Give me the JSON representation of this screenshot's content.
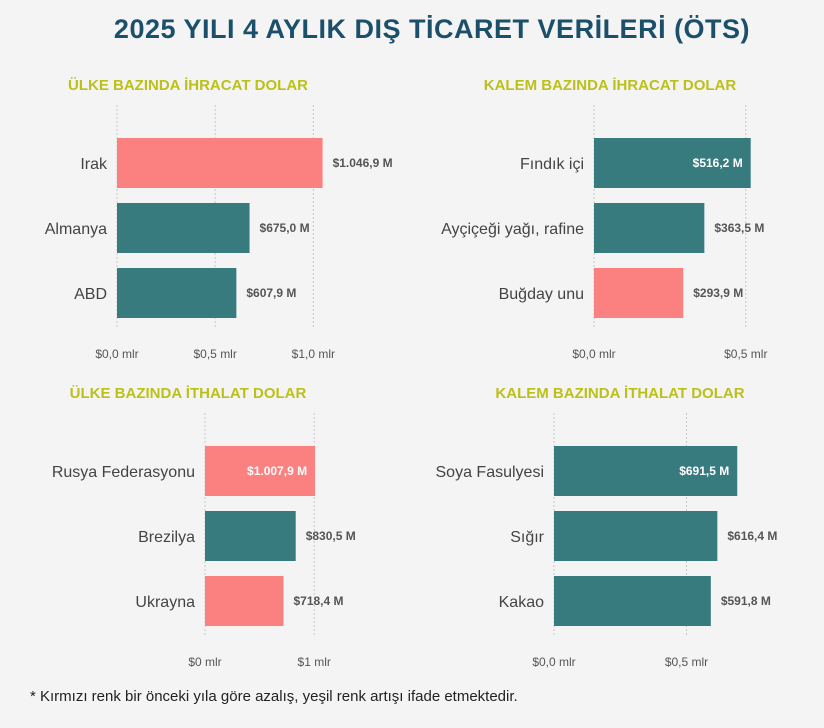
{
  "title": "2025 YILI 4 AYLIK DIŞ TİCARET VERİLERİ (ÖTS)",
  "footnote": "* Kırmızı renk bir önceki yıla göre azalış, yeşil renk artışı ifade etmektedir.",
  "colors": {
    "increase": "#387b7f",
    "decrease": "#fb8080",
    "title": "#1b4f6a",
    "chart_title": "#bcc01a"
  },
  "chart_data": [
    {
      "type": "bar",
      "orientation": "horizontal",
      "title": "ÜLKE BAZINDA İHRACAT DOLAR",
      "categories": [
        "Irak",
        "Almanya",
        "ABD"
      ],
      "values": [
        1046.9,
        675.0,
        607.9
      ],
      "value_labels": [
        "$1.046,9 M",
        "$675,0 M",
        "$607,9 M"
      ],
      "label_inside": [
        false,
        false,
        false
      ],
      "trend": [
        "decrease",
        "increase",
        "increase"
      ],
      "unit": "M USD",
      "xlim": [
        0,
        1100
      ],
      "ticks": [
        0,
        500,
        1000
      ],
      "tick_labels": [
        "$0,0 mlr",
        "$0,5 mlr",
        "$1,0 mlr"
      ]
    },
    {
      "type": "bar",
      "orientation": "horizontal",
      "title": "KALEM BAZINDA İHRACAT DOLAR",
      "categories": [
        "Fındık içi",
        "Ayçiçeği yağı, rafine",
        "Buğday unu"
      ],
      "values": [
        516.2,
        363.5,
        293.9
      ],
      "value_labels": [
        "$516,2 M",
        "$363,5 M",
        "$293,9 M"
      ],
      "label_inside": [
        true,
        false,
        false
      ],
      "trend": [
        "increase",
        "increase",
        "decrease"
      ],
      "unit": "M USD",
      "xlim": [
        0,
        560
      ],
      "ticks": [
        0,
        500
      ],
      "tick_labels": [
        "$0,0 mlr",
        "$0,5 mlr"
      ]
    },
    {
      "type": "bar",
      "orientation": "horizontal",
      "title": "ÜLKE BAZINDA İTHALAT DOLAR",
      "categories": [
        "Rusya Federasyonu",
        "Brezilya",
        "Ukrayna"
      ],
      "values": [
        1007.9,
        830.5,
        718.4
      ],
      "value_labels": [
        "$1.007,9 M",
        "$830,5 M",
        "$718,4 M"
      ],
      "label_inside": [
        true,
        false,
        false
      ],
      "trend": [
        "decrease",
        "increase",
        "decrease"
      ],
      "unit": "M USD",
      "xlim": [
        0,
        1300
      ],
      "ticks": [
        0,
        1000
      ],
      "tick_labels": [
        "$0 mlr",
        "$1 mlr"
      ]
    },
    {
      "type": "bar",
      "orientation": "horizontal",
      "title": "KALEM BAZINDA İTHALAT DOLAR",
      "categories": [
        "Soya Fasulyesi",
        "Sığır",
        "Kakao"
      ],
      "values": [
        691.5,
        616.4,
        591.8
      ],
      "value_labels": [
        "$691,5 M",
        "$616,4 M",
        "$591,8 M"
      ],
      "label_inside": [
        true,
        false,
        false
      ],
      "trend": [
        "increase",
        "increase",
        "increase"
      ],
      "unit": "M USD",
      "xlim": [
        0,
        800
      ],
      "ticks": [
        0,
        500
      ],
      "tick_labels": [
        "$0,0 mlr",
        "$0,5 mlr"
      ]
    }
  ]
}
